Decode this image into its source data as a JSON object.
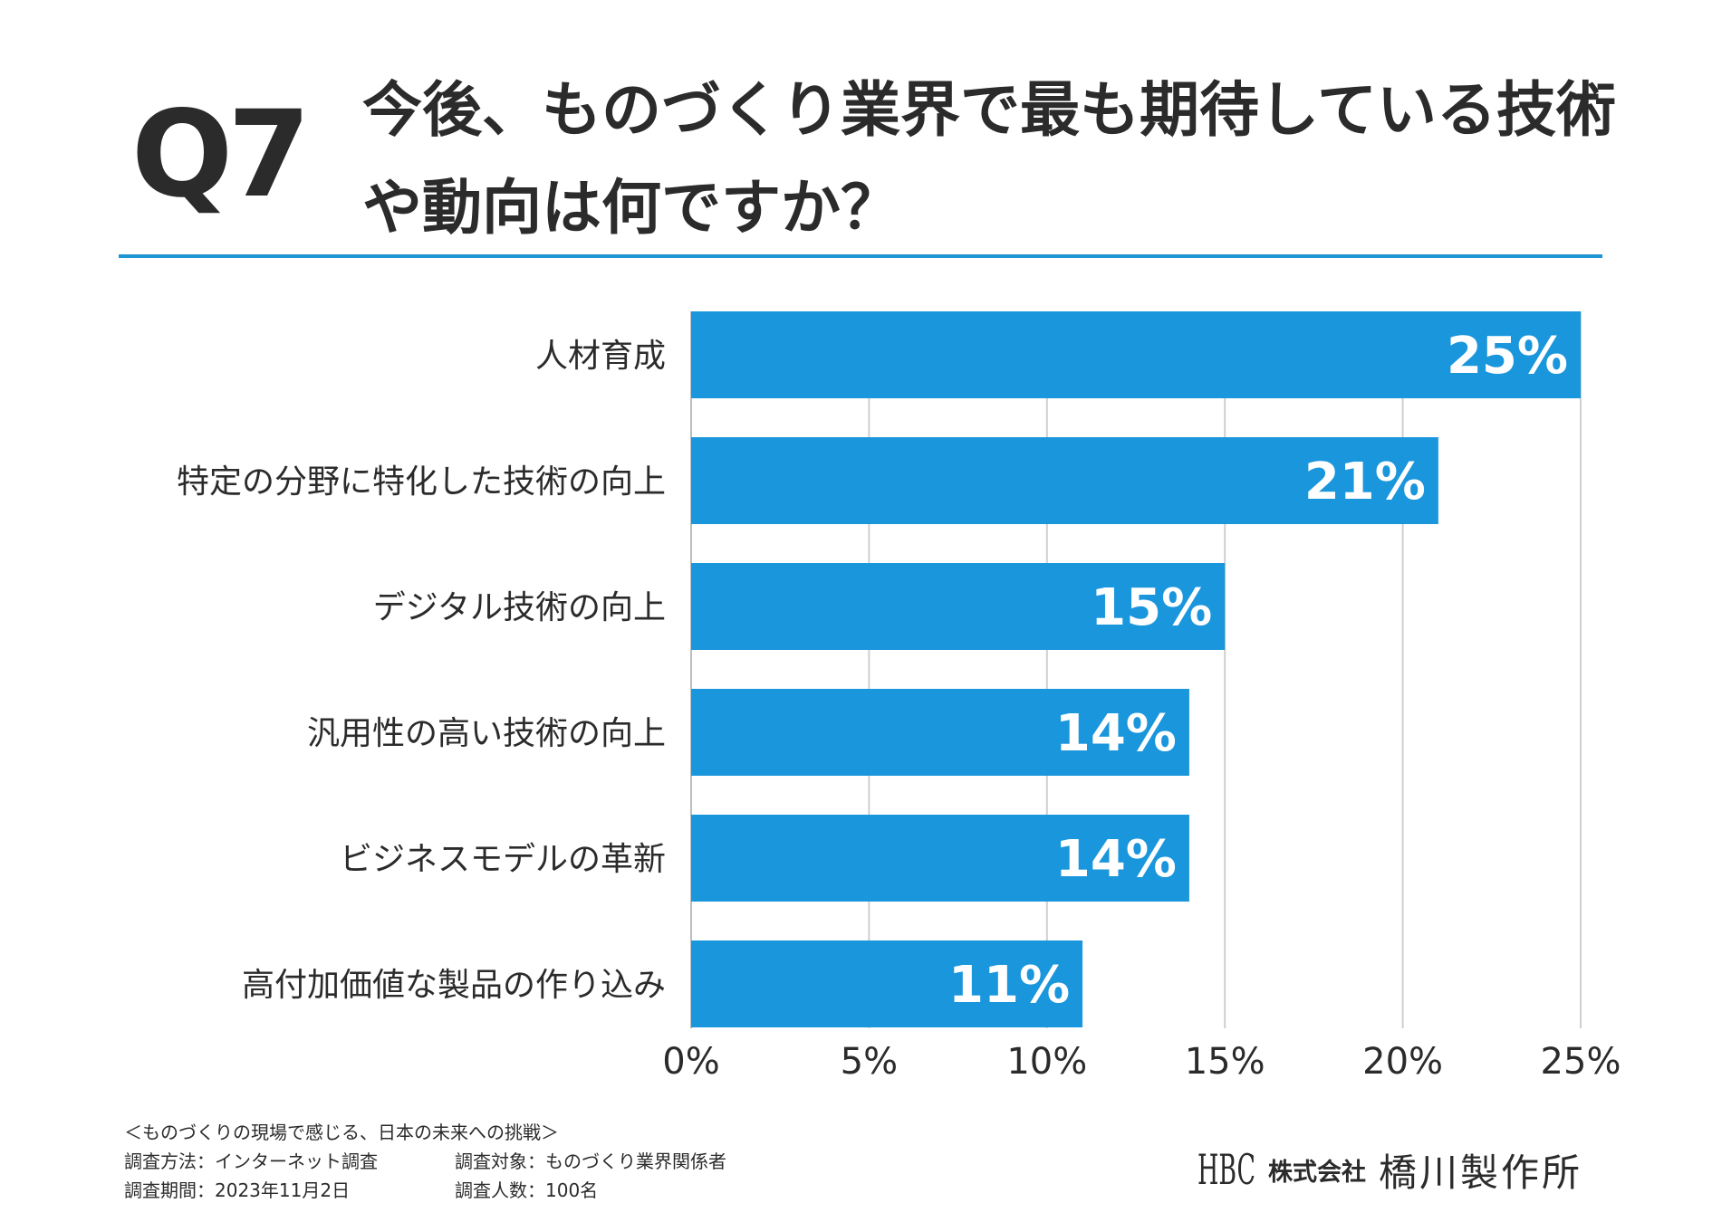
{
  "header": {
    "q_label": "Q7",
    "title": "今後、ものづくり業界で最も期待している技術や動向は何ですか？"
  },
  "colors": {
    "accent": "#1a96dc",
    "rule": "#1f95d3",
    "text": "#2b2b2b",
    "grid": "#cfcfcf"
  },
  "chart_data": {
    "type": "bar",
    "orientation": "horizontal",
    "title": "今後、ものづくり業界で最も期待している技術や動向は何ですか？",
    "categories": [
      "人材育成",
      "特定の分野に特化した技術の向上",
      "デジタル技術の向上",
      "汎用性の高い技術の向上",
      "ビジネスモデルの革新",
      "高付加価値な製品の作り込み"
    ],
    "values": [
      25,
      21,
      15,
      14,
      14,
      11
    ],
    "value_labels": [
      "25%",
      "21%",
      "15%",
      "14%",
      "14%",
      "11%"
    ],
    "x_ticks": [
      0,
      5,
      10,
      15,
      20,
      25
    ],
    "x_tick_labels": [
      "0%",
      "5%",
      "10%",
      "15%",
      "20%",
      "25%"
    ],
    "xlim": [
      0,
      25
    ],
    "xlabel": "",
    "ylabel": "",
    "grid": true,
    "legend": "none"
  },
  "footer": {
    "survey_name": "＜ものづくりの現場で感じる、日本の未来への挑戦＞",
    "method": "調査方法：インターネット調査",
    "target": "調査対象：ものづくり業界関係者",
    "period": "調査期間：2023年11月2日",
    "respondents": "調査人数：100名"
  },
  "logo": {
    "mark": "HBC",
    "small": "株式会社",
    "big": "橋川製作所"
  }
}
